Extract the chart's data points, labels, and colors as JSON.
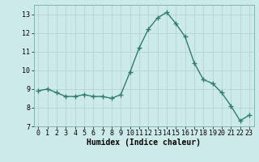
{
  "x": [
    0,
    1,
    2,
    3,
    4,
    5,
    6,
    7,
    8,
    9,
    10,
    11,
    12,
    13,
    14,
    15,
    16,
    17,
    18,
    19,
    20,
    21,
    22,
    23
  ],
  "y": [
    8.9,
    9.0,
    8.8,
    8.6,
    8.6,
    8.7,
    8.6,
    8.6,
    8.5,
    8.7,
    9.9,
    11.2,
    12.2,
    12.8,
    13.1,
    12.5,
    11.8,
    10.4,
    9.5,
    9.3,
    8.8,
    8.1,
    7.3,
    7.6
  ],
  "line_color": "#2e7d6e",
  "marker": "+",
  "marker_size": 4,
  "bg_color": "#cdeaea",
  "grid_color": "#b0d0ce",
  "xlabel": "Humidex (Indice chaleur)",
  "xlim": [
    -0.5,
    23.5
  ],
  "ylim": [
    7,
    13.5
  ],
  "yticks": [
    7,
    8,
    9,
    10,
    11,
    12,
    13
  ],
  "xticks": [
    0,
    1,
    2,
    3,
    4,
    5,
    6,
    7,
    8,
    9,
    10,
    11,
    12,
    13,
    14,
    15,
    16,
    17,
    18,
    19,
    20,
    21,
    22,
    23
  ],
  "tick_fontsize": 6,
  "xlabel_fontsize": 7,
  "linewidth": 1.0,
  "marker_linewidth": 1.0
}
